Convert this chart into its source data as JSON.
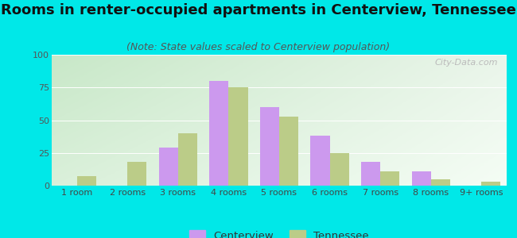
{
  "title": "Rooms in renter-occupied apartments in Centerview, Tennessee",
  "subtitle": "(Note: State values scaled to Centerview population)",
  "categories": [
    "1 room",
    "2 rooms",
    "3 rooms",
    "4 rooms",
    "5 rooms",
    "6 rooms",
    "7 rooms",
    "8 rooms",
    "9+ rooms"
  ],
  "centerview_values": [
    0,
    0,
    29,
    80,
    60,
    38,
    18,
    11,
    0
  ],
  "tennessee_values": [
    7,
    18,
    40,
    75,
    53,
    25,
    11,
    5,
    3
  ],
  "centerview_color": "#cc99ee",
  "tennessee_color": "#bbcc88",
  "background_color": "#00e8e8",
  "ylim": [
    0,
    100
  ],
  "yticks": [
    0,
    25,
    50,
    75,
    100
  ],
  "bar_width": 0.38,
  "title_fontsize": 13,
  "subtitle_fontsize": 9,
  "legend_fontsize": 9.5,
  "tick_fontsize": 8,
  "watermark": "City-Data.com",
  "grad_top_left": "#c8e8c8",
  "grad_top_right": "#eaf5ea",
  "grad_bottom_left": "#daf0da",
  "grad_bottom_right": "#f5fdf5"
}
